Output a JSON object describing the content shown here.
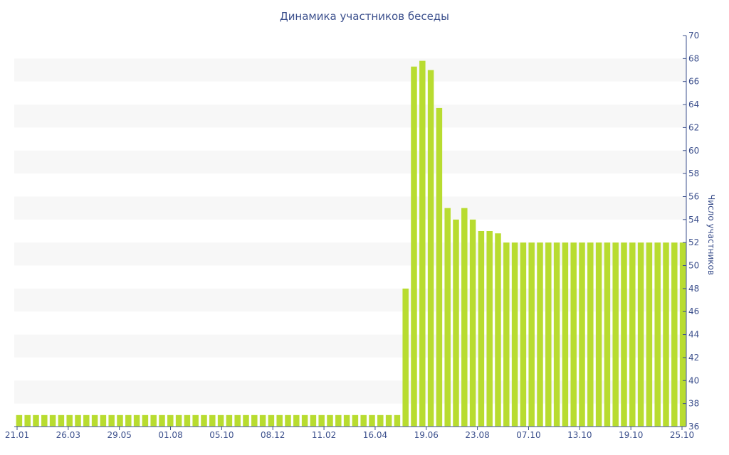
{
  "chart_data": {
    "type": "bar",
    "title": "Динамика участников беседы",
    "ylabel": "Число участников",
    "y_axis_side": "right",
    "ylim": [
      36,
      70
    ],
    "y_ticks": [
      36,
      38,
      40,
      42,
      44,
      46,
      48,
      50,
      52,
      54,
      56,
      58,
      60,
      62,
      64,
      66,
      68,
      70
    ],
    "x_tick_labels": [
      "21.01",
      "26.03",
      "29.05",
      "01.08",
      "05.10",
      "08.12",
      "11.02",
      "16.04",
      "19.06",
      "23.08",
      "07.10",
      "13.10",
      "19.10",
      "25.10"
    ],
    "bar_color": "#b8dc30",
    "values": [
      37,
      37,
      37,
      37,
      37,
      37,
      37,
      37,
      37,
      37,
      37,
      37,
      37,
      37,
      37,
      37,
      37,
      37,
      37,
      37,
      37,
      37,
      37,
      37,
      37,
      37,
      37,
      37,
      37,
      37,
      37,
      37,
      37,
      37,
      37,
      37,
      37,
      37,
      37,
      37,
      37,
      37,
      37,
      37,
      37,
      37,
      48,
      67.3,
      67.8,
      67,
      63.7,
      55,
      54,
      55,
      54,
      53,
      53,
      52.8,
      52,
      52,
      52,
      52,
      52,
      52,
      52,
      52,
      52,
      52,
      52,
      52,
      52,
      52,
      52,
      52,
      52,
      52,
      52,
      52,
      52,
      52
    ],
    "grid": "alternating horizontal bands"
  }
}
